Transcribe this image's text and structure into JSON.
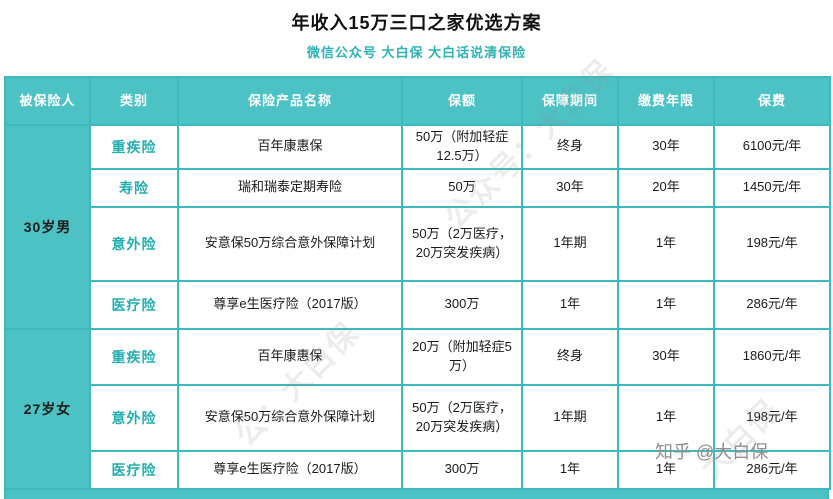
{
  "title": "年收入15万三口之家优选方案",
  "subtitle": "微信公众号 大白保  大白话说清保险",
  "colors": {
    "teal_fill": "#4cc2c4",
    "teal_border": "#3fbabc",
    "category_text": "#23aeb1",
    "watermark_gray": "#8f8f8f"
  },
  "chart_data": {
    "type": "table",
    "columns": [
      "被保险人",
      "类别",
      "保险产品名称",
      "保额",
      "保障期间",
      "缴费年限",
      "保费"
    ],
    "groups": [
      {
        "insured": "30岁男",
        "rows": [
          {
            "category": "重疾险",
            "product": "百年康惠保",
            "amount": "50万（附加轻症12.5万）",
            "period": "终身",
            "years": "30年",
            "premium": "6100元/年"
          },
          {
            "category": "寿险",
            "product": "瑞和瑞泰定期寿险",
            "amount": "50万",
            "period": "30年",
            "years": "20年",
            "premium": "1450元/年"
          },
          {
            "category": "意外险",
            "product": "安意保50万综合意外保障计划",
            "amount": "50万（2万医疗，20万突发疾病）",
            "period": "1年期",
            "years": "1年",
            "premium": "198元/年"
          },
          {
            "category": "医疗险",
            "product": "尊享e生医疗险（2017版）",
            "amount": "300万",
            "period": "1年",
            "years": "1年",
            "premium": "286元/年"
          }
        ]
      },
      {
        "insured": "27岁女",
        "rows": [
          {
            "category": "重疾险",
            "product": "百年康惠保",
            "amount": "20万（附加轻症5万）",
            "period": "终身",
            "years": "30年",
            "premium": "1860元/年"
          },
          {
            "category": "意外险",
            "product": "安意保50万综合意外保障计划",
            "amount": "50万（2万医疗，20万突发疾病）",
            "period": "1年期",
            "years": "1年",
            "premium": "198元/年"
          },
          {
            "category": "医疗险",
            "product": "尊享e生医疗险（2017版）",
            "amount": "300万",
            "period": "1年",
            "years": "1年",
            "premium": "286元/年"
          }
        ]
      }
    ]
  },
  "watermarks": {
    "zhihu": "知乎 @大白保",
    "stamp1": "公众号：大白保",
    "stamp2": "公：大白保",
    "stamp3": "大白保"
  }
}
